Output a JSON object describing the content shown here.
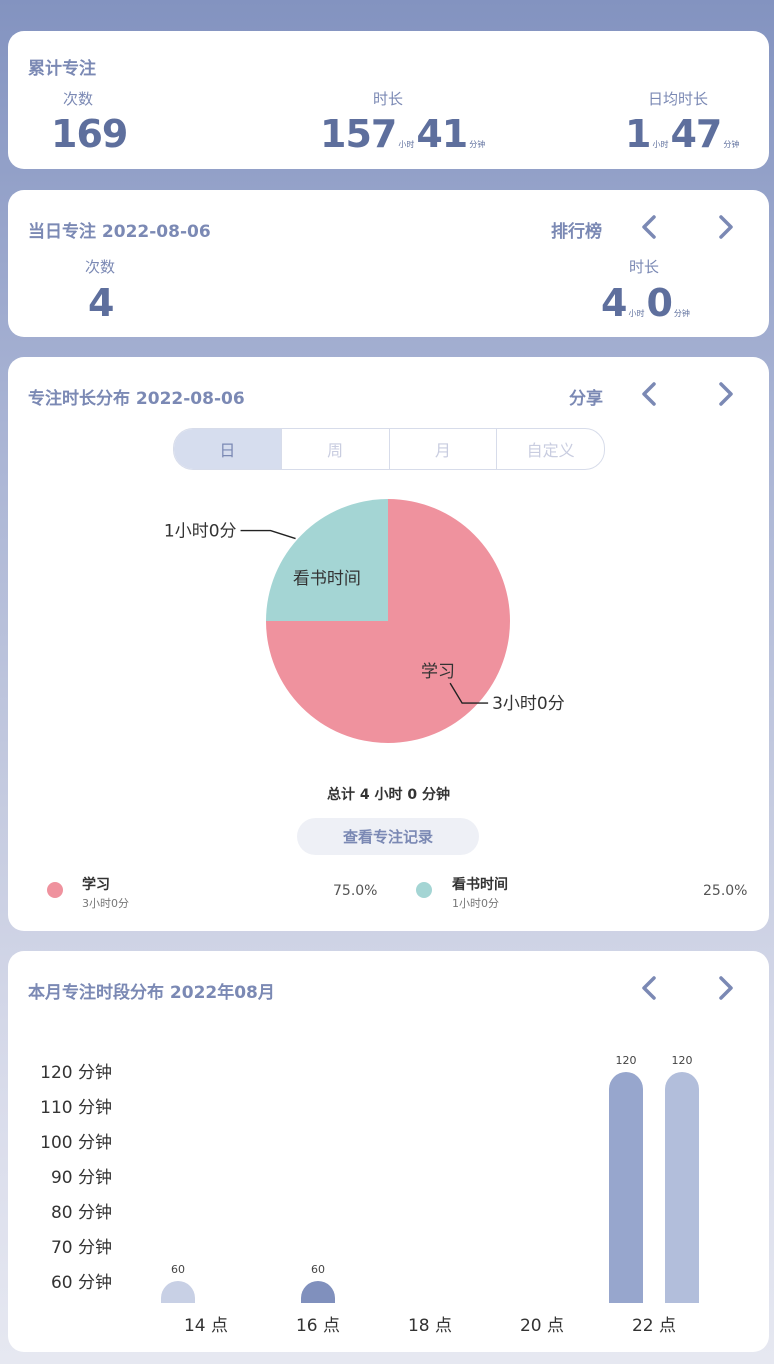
{
  "total": {
    "title": "累计专注",
    "count_label": "次数",
    "count": "169",
    "duration_label": "时长",
    "duration_hours": "157",
    "duration_hours_unit": "小时",
    "duration_minutes": "41",
    "duration_minutes_unit": "分钟",
    "daily_label": "日均时长",
    "daily_hours": "1",
    "daily_hours_unit": "小时",
    "daily_minutes": "47",
    "daily_minutes_unit": "分钟"
  },
  "today": {
    "title": "当日专注 2022-08-06",
    "ranking_label": "排行榜",
    "count_label": "次数",
    "count": "4",
    "duration_label": "时长",
    "hours": "4",
    "hours_unit": "小时",
    "minutes": "0",
    "minutes_unit": "分钟"
  },
  "distribution": {
    "title": "专注时长分布 2022-08-06",
    "share_label": "分享",
    "tabs": [
      "日",
      "周",
      "月",
      "自定义"
    ],
    "active_tab": "日",
    "total_text": "总计 4 小时 0 分钟",
    "records_button": "查看专注记录"
  },
  "monthly": {
    "title": "本月专注时段分布 2022年08月"
  },
  "colors": {
    "study": "#ef929e",
    "reading": "#a4d5d4",
    "bar_light": "#c8d0e5",
    "bar_dark": "#8090bd",
    "bar_mid": "#97a6cd",
    "bar_pale": "#b2bedb",
    "accent": "#7b89b4"
  },
  "icons": {
    "prev": "chevron-left-icon",
    "next": "chevron-right-icon"
  },
  "chart_data": [
    {
      "type": "pie",
      "slices": [
        {
          "label": "学习",
          "value_text": "3小时0分",
          "minutes": 180,
          "percent_text": "75.0%"
        },
        {
          "label": "看书时间",
          "value_text": "1小时0分",
          "minutes": 60,
          "percent_text": "25.0%"
        }
      ]
    },
    {
      "type": "bar",
      "x_tick_labels": [
        "14 点",
        "16 点",
        "18 点",
        "20 点",
        "22 点"
      ],
      "y_tick_labels": [
        "120 分钟",
        "110 分钟",
        "100 分钟",
        "90 分钟",
        "80 分钟",
        "70 分钟",
        "60 分钟"
      ],
      "ylim": [
        60,
        120
      ],
      "bars": [
        {
          "hour": 13.5,
          "value": 60,
          "label": "60",
          "color": "#c8d0e5"
        },
        {
          "hour": 16,
          "value": 60,
          "label": "60",
          "color": "#8090bd"
        },
        {
          "hour": 21.5,
          "value": 120,
          "label": "120",
          "color": "#97a6cd"
        },
        {
          "hour": 22.5,
          "value": 120,
          "label": "120",
          "color": "#b2bedb"
        }
      ]
    }
  ]
}
